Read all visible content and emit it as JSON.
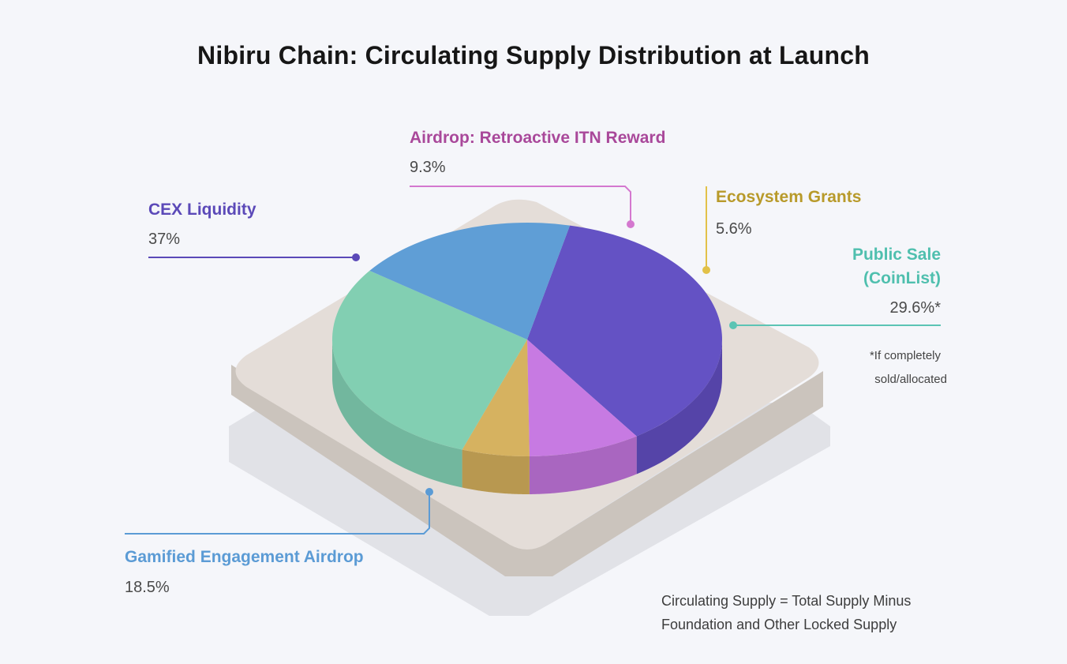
{
  "title": "Nibiru Chain:  Circulating Supply Distribution at Launch",
  "colors": {
    "background": "#f5f6fa",
    "platform_top": "#e4ddd8",
    "platform_side": "#cbc4bd",
    "shadow": "#e1e2e7"
  },
  "chart_data": {
    "type": "pie",
    "title": "Nibiru Chain:  Circulating Supply Distribution at Launch",
    "unit": "%",
    "slices": [
      {
        "name": "CEX Liquidity",
        "value": 37,
        "label": "37%",
        "color": "#6452c4",
        "side_color": "#5544a8"
      },
      {
        "name": "Airdrop: Retroactive ITN Reward",
        "value": 9.3,
        "label": "9.3%",
        "color": "#c77ae2",
        "side_color": "#a966c0"
      },
      {
        "name": "Ecosystem Grants",
        "value": 5.6,
        "label": "5.6%",
        "color": "#d6b260",
        "side_color": "#b89850"
      },
      {
        "name": "Public Sale (CoinList)",
        "value": 29.6,
        "label": "29.6%*",
        "color": "#82cfb2",
        "side_color": "#72b79e"
      },
      {
        "name": "Gamified Engagement Airdrop",
        "value": 18.5,
        "label": "18.5%",
        "color": "#5f9ed6",
        "side_color": "#538ac0"
      }
    ]
  },
  "labels": {
    "cex": {
      "name": "CEX Liquidity",
      "pct": "37%",
      "color": "#5b49b8"
    },
    "airdrop_itn": {
      "name": "Airdrop: Retroactive ITN Reward",
      "pct": "9.3%",
      "color": "#a9489a"
    },
    "ecosystem": {
      "name": "Ecosystem Grants",
      "pct": "5.6%",
      "color": "#b89a2a"
    },
    "public_sale": {
      "name_line1": "Public Sale",
      "name_line2": "(CoinList)",
      "pct": "29.6%*",
      "color": "#4fbfae"
    },
    "gamified": {
      "name": "Gamified Engagement Airdrop",
      "pct": "18.5%",
      "color": "#5b9bd5"
    }
  },
  "notes": {
    "asterisk_line1": "*If completely",
    "asterisk_line2": "sold/allocated",
    "footer_line1": "Circulating Supply = Total Supply Minus",
    "footer_line2": "Foundation and Other Locked Supply"
  }
}
